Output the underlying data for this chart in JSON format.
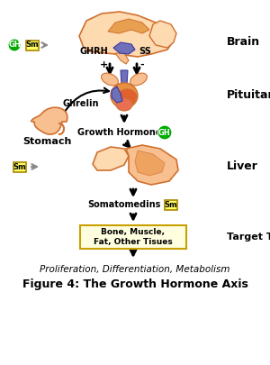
{
  "title": "Figure 4: The Growth Hormone Axis",
  "subtitle": "Proliferation, Differentiation, Metabolism",
  "bg_color": "#ffffff",
  "labels": {
    "brain": "Brain",
    "pituitary": "Pituitary",
    "stomach": "Stomach",
    "liver": "Liver",
    "target": "Target Tissues",
    "ghrh": "GHRH",
    "ss": "SS",
    "plus": "+",
    "minus": "-",
    "ghrelin": "Ghrelin",
    "gh": "GH",
    "growth_hormone": "Growth Hormone",
    "somatomedins": "Somatomedins",
    "sm": "Sm",
    "bone_box": "Bone, Muscle,\nFat, Other Tisues"
  },
  "colors": {
    "flesh": "#F0A050",
    "flesh_light": "#F8C090",
    "flesh_lighter": "#FDDAB0",
    "flesh_dark": "#D07030",
    "flesh_med": "#E89040",
    "blue_purple": "#7070B8",
    "blue_dark": "#3838A0",
    "red_orange": "#E05020",
    "gh_green": "#00AA00",
    "sm_yellow_bg": "#FFFF66",
    "sm_yellow_border": "#AA8800",
    "arrow_color": "#000000",
    "text_dark": "#000000",
    "box_fill": "#FFFFE0",
    "box_border": "#C8A000",
    "gray": "#888888"
  },
  "figsize": [
    3.0,
    4.05
  ],
  "dpi": 100
}
